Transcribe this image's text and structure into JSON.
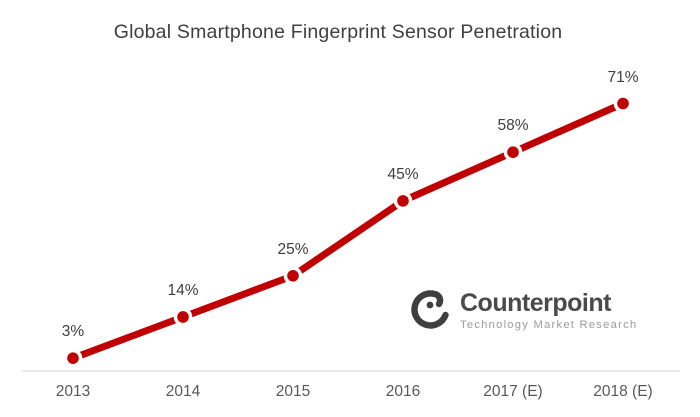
{
  "title": "Global Smartphone Fingerprint Sensor Penetration",
  "chart_data": {
    "type": "line",
    "title": "Global Smartphone Fingerprint Sensor Penetration",
    "categories": [
      "2013",
      "2014",
      "2015",
      "2016",
      "2017 (E)",
      "2018 (E)"
    ],
    "values": [
      3,
      14,
      25,
      45,
      58,
      71
    ],
    "point_labels": [
      "3%",
      "14%",
      "25%",
      "45%",
      "58%",
      "71%"
    ],
    "unit": "%",
    "xlabel": "",
    "ylabel": "",
    "ylim": [
      0,
      80
    ],
    "grid": "off",
    "y_axis": "hidden",
    "legend": "none",
    "line_color": "#c00000",
    "marker_color": "#c00000",
    "marker_halo_color": "#ffffff",
    "axis_line_color": "#d9d9d9"
  },
  "logo": {
    "name": "Counterpoint",
    "tagline": "Technology Market Research",
    "name_color": "#4a4a4a",
    "tagline_color": "#9c9c9c",
    "icon_color": "#3f3f3f"
  },
  "colors": {
    "background": "#ffffff",
    "title_text": "#404040",
    "data_label_text": "#404040",
    "axis_label_text": "#595959"
  }
}
